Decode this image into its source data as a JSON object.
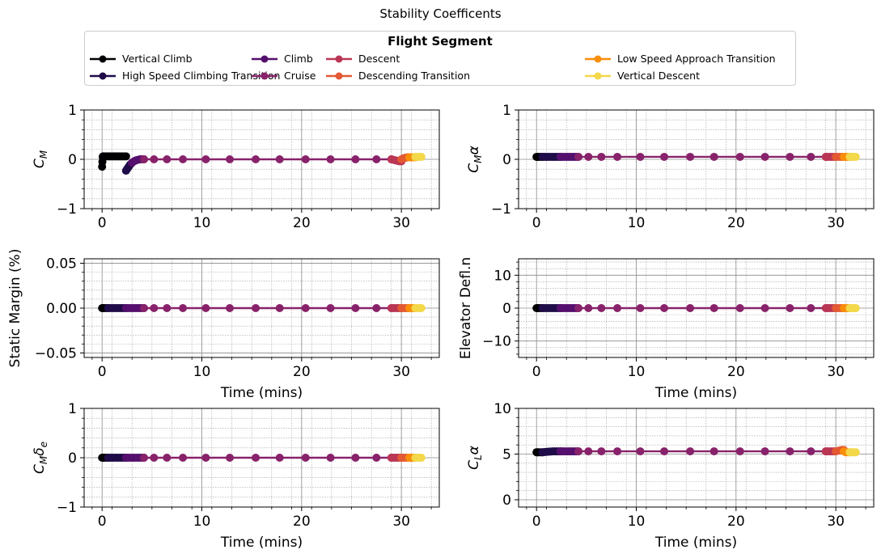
{
  "figure": {
    "suptitle": "Stability Coefficents"
  },
  "legend": {
    "title": "Flight Segment",
    "entries": [
      {
        "label": "Vertical Climb",
        "color": "#000004"
      },
      {
        "label": "High Speed Climbing Transition",
        "color": "#1f0c48"
      },
      {
        "label": "Climb",
        "color": "#550f6d"
      },
      {
        "label": "Cruise",
        "color": "#88226a"
      },
      {
        "label": "Descent",
        "color": "#ba3655"
      },
      {
        "label": "Descending Transition",
        "color": "#e35933"
      },
      {
        "label": "Low Speed Approach Transition",
        "color": "#f98e09"
      },
      {
        "label": "Vertical Descent",
        "color": "#f3d84a"
      }
    ]
  },
  "chart_data": [
    {
      "type": "line",
      "ylabel_main": "C",
      "ylabel_sub": "M",
      "ylabel_suffix": "",
      "xlabel": "",
      "ylim": [
        -1,
        1
      ],
      "yticks": [
        "−1",
        "0",
        "1"
      ],
      "ytick_values": [
        -1,
        0,
        1
      ],
      "xlim": [
        -1.8,
        33.8
      ],
      "xticks": [
        "0",
        "10",
        "20",
        "30"
      ],
      "xtick_values": [
        0,
        10,
        20,
        30
      ],
      "series": [
        {
          "x": [
            0,
            0.03,
            0.06,
            0.1,
            0.2,
            0.4,
            0.6,
            0.8,
            1.0,
            1.2,
            1.4,
            1.6,
            1.8,
            2.0,
            2.2,
            2.4
          ],
          "y": [
            -0.15,
            -0.05,
            0.05,
            0.06,
            0.06,
            0.06,
            0.06,
            0.06,
            0.06,
            0.06,
            0.06,
            0.06,
            0.06,
            0.06,
            0.06,
            0.06
          ]
        },
        {
          "x": [
            2.4,
            2.5,
            2.6,
            2.7,
            2.8,
            2.9,
            3.0
          ],
          "y": [
            -0.23,
            -0.2,
            -0.17,
            -0.14,
            -0.11,
            -0.09,
            -0.07
          ]
        },
        {
          "x": [
            3.0,
            3.2,
            3.4,
            3.6,
            3.8,
            4.0,
            4.2
          ],
          "y": [
            -0.07,
            -0.04,
            -0.02,
            -0.01,
            0.0,
            0.0,
            0.0
          ]
        },
        {
          "x": [
            4.2,
            5.2,
            6.5,
            8.1,
            10.4,
            12.8,
            15.4,
            17.8,
            20.4,
            22.9,
            25.4,
            27.5,
            29.0
          ],
          "y": [
            0.0,
            0.0,
            0.0,
            0.0,
            0.0,
            0.0,
            0.0,
            0.0,
            0.0,
            0.0,
            0.0,
            0.0,
            0.0
          ]
        },
        {
          "x": [
            29.0,
            29.2,
            29.4,
            29.6,
            29.8,
            30.0
          ],
          "y": [
            0.0,
            -0.01,
            -0.02,
            -0.03,
            -0.04,
            -0.04
          ]
        },
        {
          "x": [
            30.0,
            30.2,
            30.4,
            30.6,
            30.8
          ],
          "y": [
            0.0,
            0.02,
            0.03,
            0.04,
            0.04
          ]
        },
        {
          "x": [
            30.8,
            31.0,
            31.2,
            31.4
          ],
          "y": [
            0.04,
            0.04,
            0.04,
            0.04
          ]
        },
        {
          "x": [
            31.4,
            31.6,
            31.8,
            32.0
          ],
          "y": [
            0.05,
            0.05,
            0.05,
            0.05
          ]
        }
      ]
    },
    {
      "type": "line",
      "ylabel_main": "C",
      "ylabel_sub": "M",
      "ylabel_suffix": "α",
      "xlabel": "",
      "ylim": [
        -1,
        1
      ],
      "yticks": [
        "−1",
        "0",
        "1"
      ],
      "ytick_values": [
        -1,
        0,
        1
      ],
      "xlim": [
        -1.8,
        33.8
      ],
      "xticks": [
        "0",
        "10",
        "20",
        "30"
      ],
      "xtick_values": [
        0,
        10,
        20,
        30
      ],
      "series": [
        {
          "x": [
            0,
            0.1,
            0.2,
            0.4,
            0.6
          ],
          "y": [
            0.05,
            0.05,
            0.05,
            0.05,
            0.05
          ]
        },
        {
          "x": [
            0.6,
            0.8,
            1.0,
            1.2,
            1.4,
            1.6,
            1.8,
            2.0,
            2.2,
            2.4
          ],
          "y": [
            0.05,
            0.05,
            0.05,
            0.05,
            0.05,
            0.05,
            0.05,
            0.05,
            0.05,
            0.05
          ]
        },
        {
          "x": [
            2.4,
            2.6,
            2.8,
            3.0,
            3.2,
            3.4,
            3.6,
            3.8,
            4.0,
            4.2
          ],
          "y": [
            0.05,
            0.05,
            0.05,
            0.05,
            0.05,
            0.05,
            0.05,
            0.05,
            0.05,
            0.05
          ]
        },
        {
          "x": [
            4.2,
            5.2,
            6.5,
            8.1,
            10.4,
            12.8,
            15.4,
            17.8,
            20.4,
            22.9,
            25.4,
            27.5,
            29.0
          ],
          "y": [
            0.05,
            0.05,
            0.05,
            0.05,
            0.05,
            0.05,
            0.05,
            0.05,
            0.05,
            0.05,
            0.05,
            0.05,
            0.05
          ]
        },
        {
          "x": [
            29.0,
            29.2,
            29.4,
            29.6,
            29.8,
            30.0
          ],
          "y": [
            0.05,
            0.05,
            0.05,
            0.05,
            0.05,
            0.05
          ]
        },
        {
          "x": [
            30.0,
            30.2,
            30.4,
            30.6,
            30.8
          ],
          "y": [
            0.05,
            0.05,
            0.05,
            0.05,
            0.05
          ]
        },
        {
          "x": [
            30.8,
            31.0,
            31.2,
            31.4
          ],
          "y": [
            0.05,
            0.05,
            0.05,
            0.05
          ]
        },
        {
          "x": [
            31.4,
            31.6,
            31.8,
            32.0
          ],
          "y": [
            0.05,
            0.05,
            0.05,
            0.05
          ]
        }
      ]
    },
    {
      "type": "line",
      "ylabel_main": "Static Margin (%)",
      "ylabel_sub": "",
      "ylabel_suffix": "",
      "xlabel": "Time (mins)",
      "ylim": [
        -0.055,
        0.055
      ],
      "yticks": [
        "−0.05",
        "0.00",
        "0.05"
      ],
      "ytick_values": [
        -0.05,
        0,
        0.05
      ],
      "xlim": [
        -1.8,
        33.8
      ],
      "xticks": [
        "0",
        "10",
        "20",
        "30"
      ],
      "xtick_values": [
        0,
        10,
        20,
        30
      ],
      "series": [
        {
          "x": [
            0,
            0.1,
            0.2,
            0.4,
            0.6
          ],
          "y": [
            0,
            0,
            0,
            0,
            0
          ]
        },
        {
          "x": [
            0.6,
            0.8,
            1.0,
            1.2,
            1.4,
            1.6,
            1.8,
            2.0,
            2.2,
            2.4
          ],
          "y": [
            0,
            0,
            0,
            0,
            0,
            0,
            0,
            0,
            0,
            0
          ]
        },
        {
          "x": [
            2.4,
            2.6,
            2.8,
            3.0,
            3.2,
            3.4,
            3.6,
            3.8,
            4.0,
            4.2
          ],
          "y": [
            0,
            0,
            0,
            0,
            0,
            0,
            0,
            0,
            0,
            0
          ]
        },
        {
          "x": [
            4.2,
            5.2,
            6.5,
            8.1,
            10.4,
            12.8,
            15.4,
            17.8,
            20.4,
            22.9,
            25.4,
            27.5,
            29.0
          ],
          "y": [
            0,
            0,
            0,
            0,
            0,
            0,
            0,
            0,
            0,
            0,
            0,
            0,
            0
          ]
        },
        {
          "x": [
            29.0,
            29.2,
            29.4,
            29.6,
            29.8,
            30.0
          ],
          "y": [
            0,
            0,
            0,
            0,
            0,
            0
          ]
        },
        {
          "x": [
            30.0,
            30.2,
            30.4,
            30.6,
            30.8
          ],
          "y": [
            0,
            0,
            0,
            0,
            0
          ]
        },
        {
          "x": [
            30.8,
            31.0,
            31.2,
            31.4
          ],
          "y": [
            0,
            0,
            0,
            0
          ]
        },
        {
          "x": [
            31.4,
            31.6,
            31.8,
            32.0
          ],
          "y": [
            0,
            0,
            0,
            0
          ]
        }
      ]
    },
    {
      "type": "line",
      "ylabel_main": "Elevator Defl.n",
      "ylabel_sub": "",
      "ylabel_suffix": "",
      "xlabel": "Time (mins)",
      "ylim": [
        -15,
        15
      ],
      "yticks": [
        "−10",
        "0",
        "10"
      ],
      "ytick_values": [
        -10,
        0,
        10
      ],
      "xlim": [
        -1.8,
        33.8
      ],
      "xticks": [
        "0",
        "10",
        "20",
        "30"
      ],
      "xtick_values": [
        0,
        10,
        20,
        30
      ],
      "series": [
        {
          "x": [
            0,
            0.1,
            0.2,
            0.4,
            0.6
          ],
          "y": [
            0,
            0,
            0,
            0,
            0
          ]
        },
        {
          "x": [
            0.6,
            0.8,
            1.0,
            1.2,
            1.4,
            1.6,
            1.8,
            2.0,
            2.2,
            2.4
          ],
          "y": [
            0,
            0,
            0,
            0,
            0,
            0,
            0,
            0,
            0,
            0
          ]
        },
        {
          "x": [
            2.4,
            2.6,
            2.8,
            3.0,
            3.2,
            3.4,
            3.6,
            3.8,
            4.0,
            4.2
          ],
          "y": [
            0,
            0,
            0,
            0,
            0,
            0,
            0,
            0,
            0,
            0
          ]
        },
        {
          "x": [
            4.2,
            5.2,
            6.5,
            8.1,
            10.4,
            12.8,
            15.4,
            17.8,
            20.4,
            22.9,
            25.4,
            27.5,
            29.0
          ],
          "y": [
            0,
            0,
            0,
            0,
            0,
            0,
            0,
            0,
            0,
            0,
            0,
            0,
            0
          ]
        },
        {
          "x": [
            29.0,
            29.2,
            29.4,
            29.6,
            29.8,
            30.0
          ],
          "y": [
            0,
            0,
            0,
            0,
            0,
            0
          ]
        },
        {
          "x": [
            30.0,
            30.2,
            30.4,
            30.6,
            30.8
          ],
          "y": [
            0,
            0,
            0,
            0,
            0
          ]
        },
        {
          "x": [
            30.8,
            31.0,
            31.2,
            31.4
          ],
          "y": [
            0,
            0,
            0,
            0
          ]
        },
        {
          "x": [
            31.4,
            31.6,
            31.8,
            32.0
          ],
          "y": [
            0,
            0,
            0,
            0
          ]
        }
      ]
    },
    {
      "type": "line",
      "ylabel_main": "C",
      "ylabel_sub": "M",
      "ylabel_suffix": "δ",
      "ylabel_suffix_sub": "e",
      "xlabel": "Time (mins)",
      "ylim": [
        -1,
        1
      ],
      "yticks": [
        "−1",
        "0",
        "1"
      ],
      "ytick_values": [
        -1,
        0,
        1
      ],
      "xlim": [
        -1.8,
        33.8
      ],
      "xticks": [
        "0",
        "10",
        "20",
        "30"
      ],
      "xtick_values": [
        0,
        10,
        20,
        30
      ],
      "series": [
        {
          "x": [
            0,
            0.1,
            0.2,
            0.4,
            0.6
          ],
          "y": [
            0,
            0,
            0,
            0,
            0
          ]
        },
        {
          "x": [
            0.6,
            0.8,
            1.0,
            1.2,
            1.4,
            1.6,
            1.8,
            2.0,
            2.2,
            2.4
          ],
          "y": [
            0,
            0,
            0,
            0,
            0,
            0,
            0,
            0,
            0,
            0
          ]
        },
        {
          "x": [
            2.4,
            2.6,
            2.8,
            3.0,
            3.2,
            3.4,
            3.6,
            3.8,
            4.0,
            4.2
          ],
          "y": [
            0,
            0,
            0,
            0,
            0,
            0,
            0,
            0,
            0,
            0
          ]
        },
        {
          "x": [
            4.2,
            5.2,
            6.5,
            8.1,
            10.4,
            12.8,
            15.4,
            17.8,
            20.4,
            22.9,
            25.4,
            27.5,
            29.0
          ],
          "y": [
            0,
            0,
            0,
            0,
            0,
            0,
            0,
            0,
            0,
            0,
            0,
            0,
            0
          ]
        },
        {
          "x": [
            29.0,
            29.2,
            29.4,
            29.6,
            29.8,
            30.0
          ],
          "y": [
            0,
            0,
            0,
            0,
            0,
            0
          ]
        },
        {
          "x": [
            30.0,
            30.2,
            30.4,
            30.6,
            30.8
          ],
          "y": [
            0,
            0,
            0,
            0,
            0
          ]
        },
        {
          "x": [
            30.8,
            31.0,
            31.2,
            31.4
          ],
          "y": [
            0,
            0,
            0,
            0
          ]
        },
        {
          "x": [
            31.4,
            31.6,
            31.8,
            32.0
          ],
          "y": [
            0,
            0,
            0,
            0
          ]
        }
      ]
    },
    {
      "type": "line",
      "ylabel_main": "C",
      "ylabel_sub": "L",
      "ylabel_suffix": "α",
      "xlabel": "Time (mins)",
      "ylim": [
        -0.8,
        10
      ],
      "yticks": [
        "0",
        "5",
        "10"
      ],
      "ytick_values": [
        0,
        5,
        10
      ],
      "xlim": [
        -1.8,
        33.8
      ],
      "xticks": [
        "0",
        "10",
        "20",
        "30"
      ],
      "xtick_values": [
        0,
        10,
        20,
        30
      ],
      "series": [
        {
          "x": [
            0,
            0.1,
            0.2,
            0.4,
            0.6
          ],
          "y": [
            5.2,
            5.2,
            5.2,
            5.2,
            5.2
          ]
        },
        {
          "x": [
            0.6,
            0.8,
            1.0,
            1.2,
            1.4,
            1.6,
            1.8,
            2.0,
            2.2,
            2.4
          ],
          "y": [
            5.2,
            5.22,
            5.24,
            5.26,
            5.28,
            5.3,
            5.3,
            5.3,
            5.3,
            5.3
          ]
        },
        {
          "x": [
            2.4,
            2.6,
            2.8,
            3.0,
            3.2,
            3.4,
            3.6,
            3.8,
            4.0,
            4.2
          ],
          "y": [
            5.3,
            5.3,
            5.3,
            5.3,
            5.3,
            5.3,
            5.3,
            5.3,
            5.3,
            5.3
          ]
        },
        {
          "x": [
            4.2,
            5.2,
            6.5,
            8.1,
            10.4,
            12.8,
            15.4,
            17.8,
            20.4,
            22.9,
            25.4,
            27.5,
            29.0
          ],
          "y": [
            5.3,
            5.3,
            5.3,
            5.3,
            5.3,
            5.3,
            5.3,
            5.3,
            5.3,
            5.3,
            5.3,
            5.3,
            5.3
          ]
        },
        {
          "x": [
            29.0,
            29.2,
            29.4,
            29.6,
            29.8,
            30.0
          ],
          "y": [
            5.3,
            5.3,
            5.3,
            5.3,
            5.3,
            5.3
          ]
        },
        {
          "x": [
            30.0,
            30.2,
            30.4,
            30.6,
            30.8
          ],
          "y": [
            5.3,
            5.35,
            5.4,
            5.45,
            5.45
          ]
        },
        {
          "x": [
            30.8,
            31.0,
            31.2,
            31.4
          ],
          "y": [
            5.3,
            5.2,
            5.2,
            5.2
          ]
        },
        {
          "x": [
            31.4,
            31.6,
            31.8,
            32.0
          ],
          "y": [
            5.2,
            5.2,
            5.2,
            5.2
          ]
        }
      ]
    }
  ]
}
